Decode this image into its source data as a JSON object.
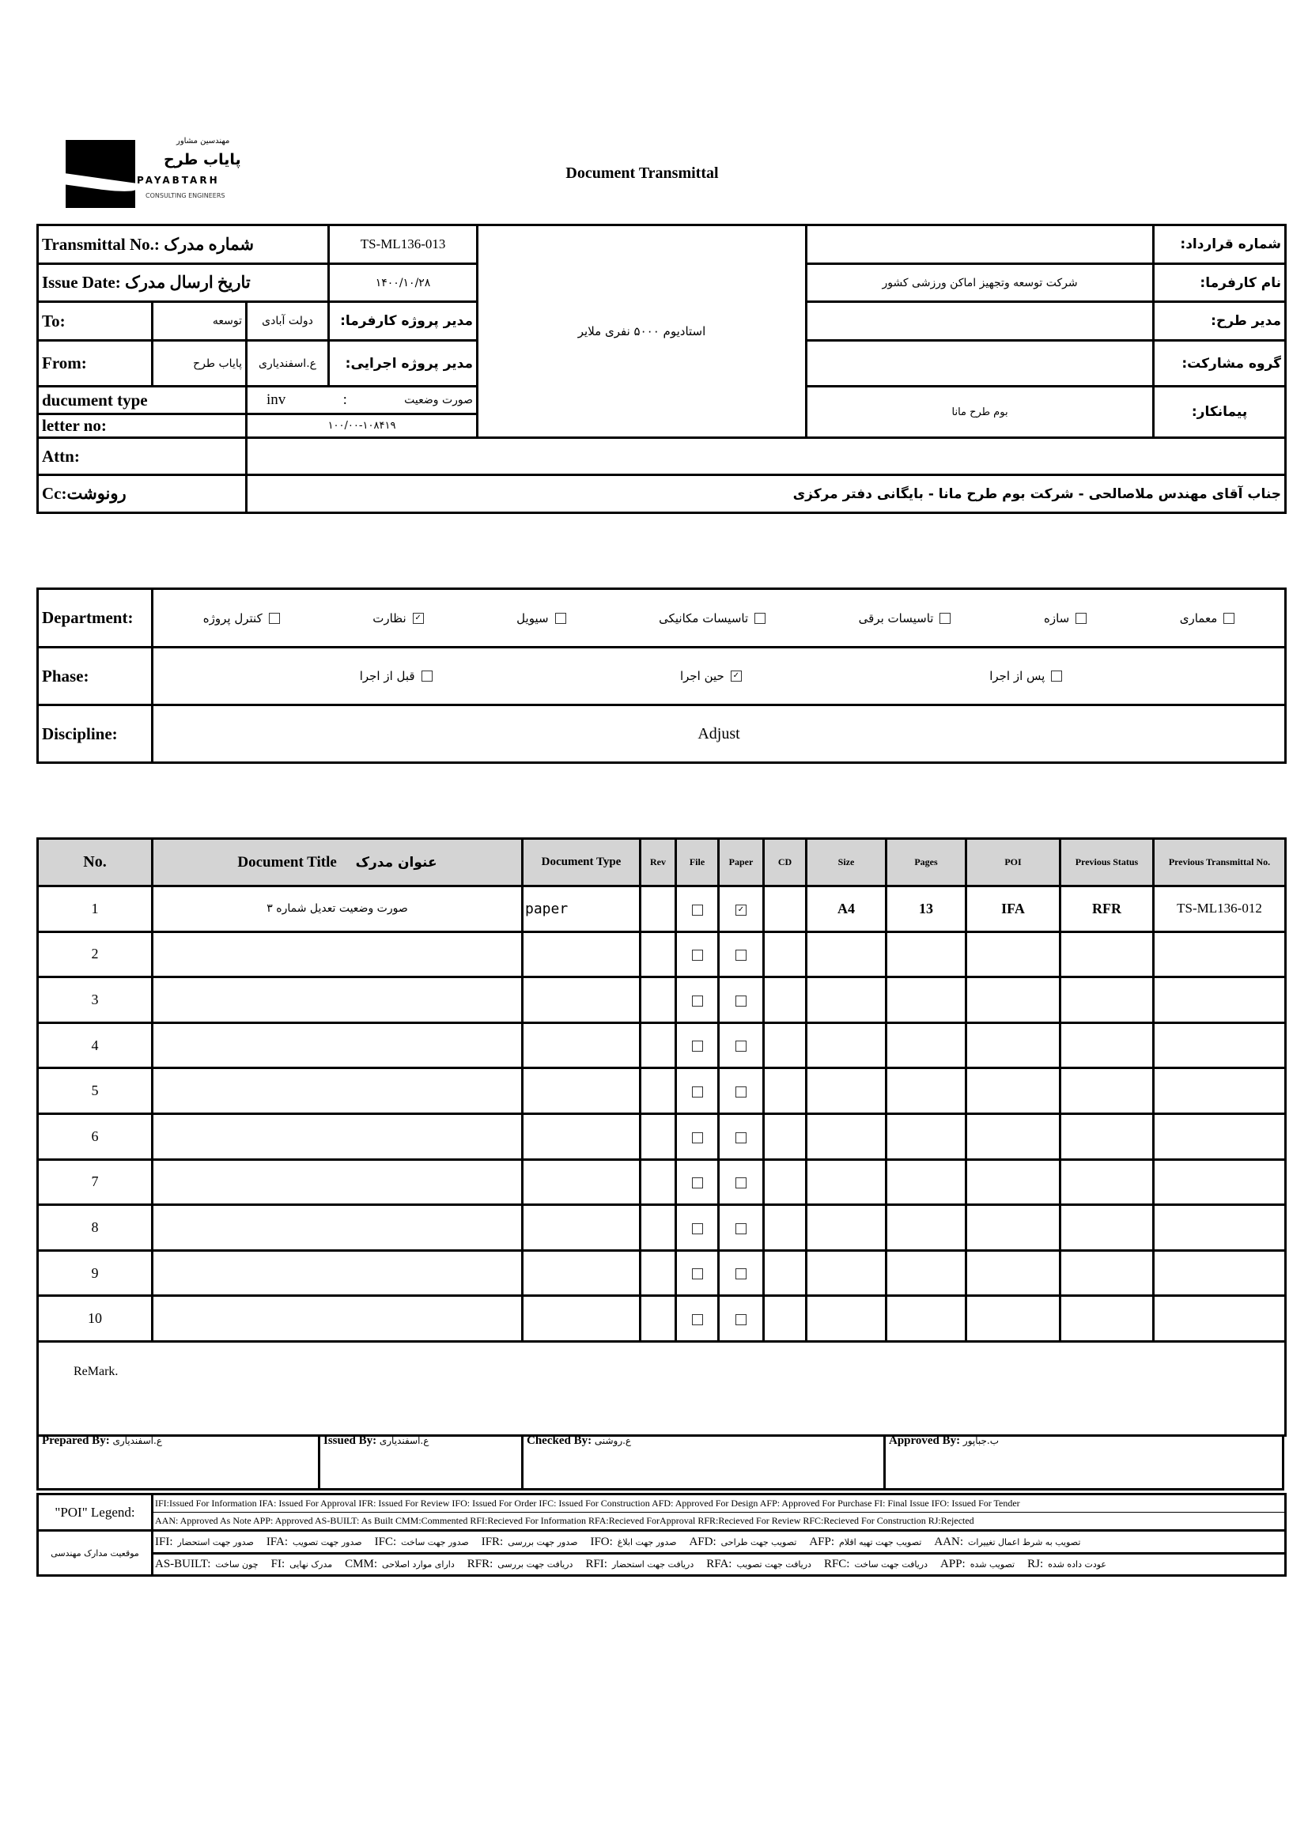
{
  "logo": {
    "line1": "مهندسین مشاور",
    "line2": "پایاب طرح",
    "line3": "PAYABTARH",
    "line4": "CONSULTING ENGINEERS"
  },
  "title": "Document Transmittal",
  "header": {
    "transmittal_label": "Transmittal No.: شماره مدرک",
    "transmittal_value": "TS-ML136-013",
    "issue_label": "Issue Date: تاریخ ارسال مدرک",
    "issue_value": "۱۴۰۰/۱۰/۲۸",
    "to_label": "To:",
    "to_org": "توسعه",
    "to_name": "دولت آبادی",
    "to_role": "مدیر پروژه کارفرما:",
    "from_label": "From:",
    "from_org": "پایاب طرح",
    "from_name": "ع.اسفندیاری",
    "from_role": "مدیر پروژه اجرایی:",
    "doctype_label": "ducument type",
    "doctype_code": "inv",
    "doctype_sep": ":",
    "doctype_value": "صورت وضعیت",
    "letter_label": "letter no:",
    "letter_value": "۱۰۰/۰۰-۱۰۸۴۱۹",
    "project": "استادیوم ۵۰۰۰ نفری ملایر",
    "contract_label": "شماره قرارداد:",
    "contract_value": "",
    "client_label": "نام کارفرما:",
    "client_value": "شرکت توسعه وتجهیز اماکن ورزشی کشور",
    "pm_label": "مدیر طرح:",
    "pm_value": "",
    "group_label": "گروه مشارکت:",
    "group_value": "",
    "contractor_label": "پیمانکار:",
    "contractor_value": "بوم طرح مانا",
    "attn_label": "Attn:",
    "attn_value": "",
    "cc_label": "Cc:رونوشت",
    "cc_value": "جناب آقای مهندس ملاصالحی - شرکت بوم طرح مانا - بایگانی دفتر مرکزی"
  },
  "department": {
    "label": "Department:",
    "options": [
      {
        "label": "معماری",
        "checked": false
      },
      {
        "label": "سازه",
        "checked": false
      },
      {
        "label": "تاسیسات برقی",
        "checked": false
      },
      {
        "label": "تاسیسات مکانیکی",
        "checked": false
      },
      {
        "label": "سیویل",
        "checked": false
      },
      {
        "label": "نظارت",
        "checked": true
      },
      {
        "label": "کنترل پروژه",
        "checked": false
      }
    ]
  },
  "phase": {
    "label": "Phase:",
    "options": [
      {
        "label": "پس از اجرا",
        "checked": false
      },
      {
        "label": "حین اجرا",
        "checked": true
      },
      {
        "label": "قبل از اجرا",
        "checked": false
      }
    ]
  },
  "discipline": {
    "label": "Discipline:",
    "value": "Adjust"
  },
  "documents": {
    "headers": {
      "no": "No.",
      "title": "Document Title",
      "title_fa": "عنوان مدرک",
      "doc_type": "Document Type",
      "rev": "Rev",
      "file": "File",
      "paper": "Paper",
      "cd": "CD",
      "size": "Size",
      "pages": "Pages",
      "poi": "POI",
      "prev_status": "Previous Status",
      "prev_transmittal": "Previous Transmittal No."
    },
    "rows": [
      {
        "no": "1",
        "title": "صورت وضعیت تعدیل شماره ۳",
        "doc_type": "paper",
        "rev": "",
        "file": false,
        "paper": true,
        "cd": "",
        "size": "A4",
        "pages": "13",
        "poi": "IFA",
        "prev_status": "RFR",
        "prev_transmittal": "TS-ML136-012"
      },
      {
        "no": "2",
        "title": "",
        "doc_type": "",
        "rev": "",
        "file": false,
        "paper": false,
        "cd": "",
        "size": "",
        "pages": "",
        "poi": "",
        "prev_status": "",
        "prev_transmittal": ""
      },
      {
        "no": "3",
        "title": "",
        "doc_type": "",
        "rev": "",
        "file": false,
        "paper": false,
        "cd": "",
        "size": "",
        "pages": "",
        "poi": "",
        "prev_status": "",
        "prev_transmittal": ""
      },
      {
        "no": "4",
        "title": "",
        "doc_type": "",
        "rev": "",
        "file": false,
        "paper": false,
        "cd": "",
        "size": "",
        "pages": "",
        "poi": "",
        "prev_status": "",
        "prev_transmittal": ""
      },
      {
        "no": "5",
        "title": "",
        "doc_type": "",
        "rev": "",
        "file": false,
        "paper": false,
        "cd": "",
        "size": "",
        "pages": "",
        "poi": "",
        "prev_status": "",
        "prev_transmittal": ""
      },
      {
        "no": "6",
        "title": "",
        "doc_type": "",
        "rev": "",
        "file": false,
        "paper": false,
        "cd": "",
        "size": "",
        "pages": "",
        "poi": "",
        "prev_status": "",
        "prev_transmittal": ""
      },
      {
        "no": "7",
        "title": "",
        "doc_type": "",
        "rev": "",
        "file": false,
        "paper": false,
        "cd": "",
        "size": "",
        "pages": "",
        "poi": "",
        "prev_status": "",
        "prev_transmittal": ""
      },
      {
        "no": "8",
        "title": "",
        "doc_type": "",
        "rev": "",
        "file": false,
        "paper": false,
        "cd": "",
        "size": "",
        "pages": "",
        "poi": "",
        "prev_status": "",
        "prev_transmittal": ""
      },
      {
        "no": "9",
        "title": "",
        "doc_type": "",
        "rev": "",
        "file": false,
        "paper": false,
        "cd": "",
        "size": "",
        "pages": "",
        "poi": "",
        "prev_status": "",
        "prev_transmittal": ""
      },
      {
        "no": "10",
        "title": "",
        "doc_type": "",
        "rev": "",
        "file": false,
        "paper": false,
        "cd": "",
        "size": "",
        "pages": "",
        "poi": "",
        "prev_status": "",
        "prev_transmittal": ""
      }
    ],
    "remark_label": "ReMark."
  },
  "signatures": {
    "prepared_label": "Prepared By:",
    "prepared_value": "ع.اسفندیاری",
    "issued_label": "Issued By:",
    "issued_value": "ع.اسفندیاری",
    "checked_label": "Checked By:",
    "checked_value": "ع.روشنی",
    "approved_label": "Approved By:",
    "approved_value": "ب.جباپور"
  },
  "legend": {
    "poi_label": "\"POI\" Legend:",
    "line1": "IFI:Issued For Information  IFA: Issued For Approval  IFR: Issued For Review  IFO: Issued For Order  IFC: Issued For Construction AFD: Approved For Design AFP: Approved For Purchase  FI: Final Issue  IFO: Issued For Tender",
    "line2": "AAN: Approved As Note  APP: Approved  AS-BUILT: As Built CMM:Commented  RFI:Recieved For Information  RFA:Recieved ForApproval  RFR:Recieved For Review  RFC:Recieved For Construction  RJ:Rejected",
    "fa_label": "موقعیت مدارک مهندسی",
    "fa_line1": [
      {
        "code": "IFI:",
        "text": "صدور جهت استحضار"
      },
      {
        "code": "IFA:",
        "text": "صدور جهت تصویب"
      },
      {
        "code": "IFC:",
        "text": "صدور جهت ساخت"
      },
      {
        "code": "IFR:",
        "text": "صدور جهت بررسی"
      },
      {
        "code": "IFO:",
        "text": "صدور جهت ابلاغ"
      },
      {
        "code": "AFD:",
        "text": "تصویب جهت طراحی"
      },
      {
        "code": "AFP:",
        "text": "تصویب جهت تهیه اقلام"
      },
      {
        "code": "AAN:",
        "text": "تصویب به شرط اعمال تغییرات"
      }
    ],
    "fa_line2": [
      {
        "code": "AS-BUILT:",
        "text": "چون ساخت"
      },
      {
        "code": "FI:",
        "text": "مدرک نهایی"
      },
      {
        "code": "CMM:",
        "text": "دارای موارد اصلاحی"
      },
      {
        "code": "RFR:",
        "text": "دریافت جهت بررسی"
      },
      {
        "code": "RFI:",
        "text": "دریافت جهت استحضار"
      },
      {
        "code": "RFA:",
        "text": "دریافت جهت تصویب"
      },
      {
        "code": "RFC:",
        "text": "دریافت جهت ساخت"
      },
      {
        "code": "APP:",
        "text": "تصویب شده"
      },
      {
        "code": "RJ:",
        "text": "عودت داده شده"
      }
    ]
  }
}
